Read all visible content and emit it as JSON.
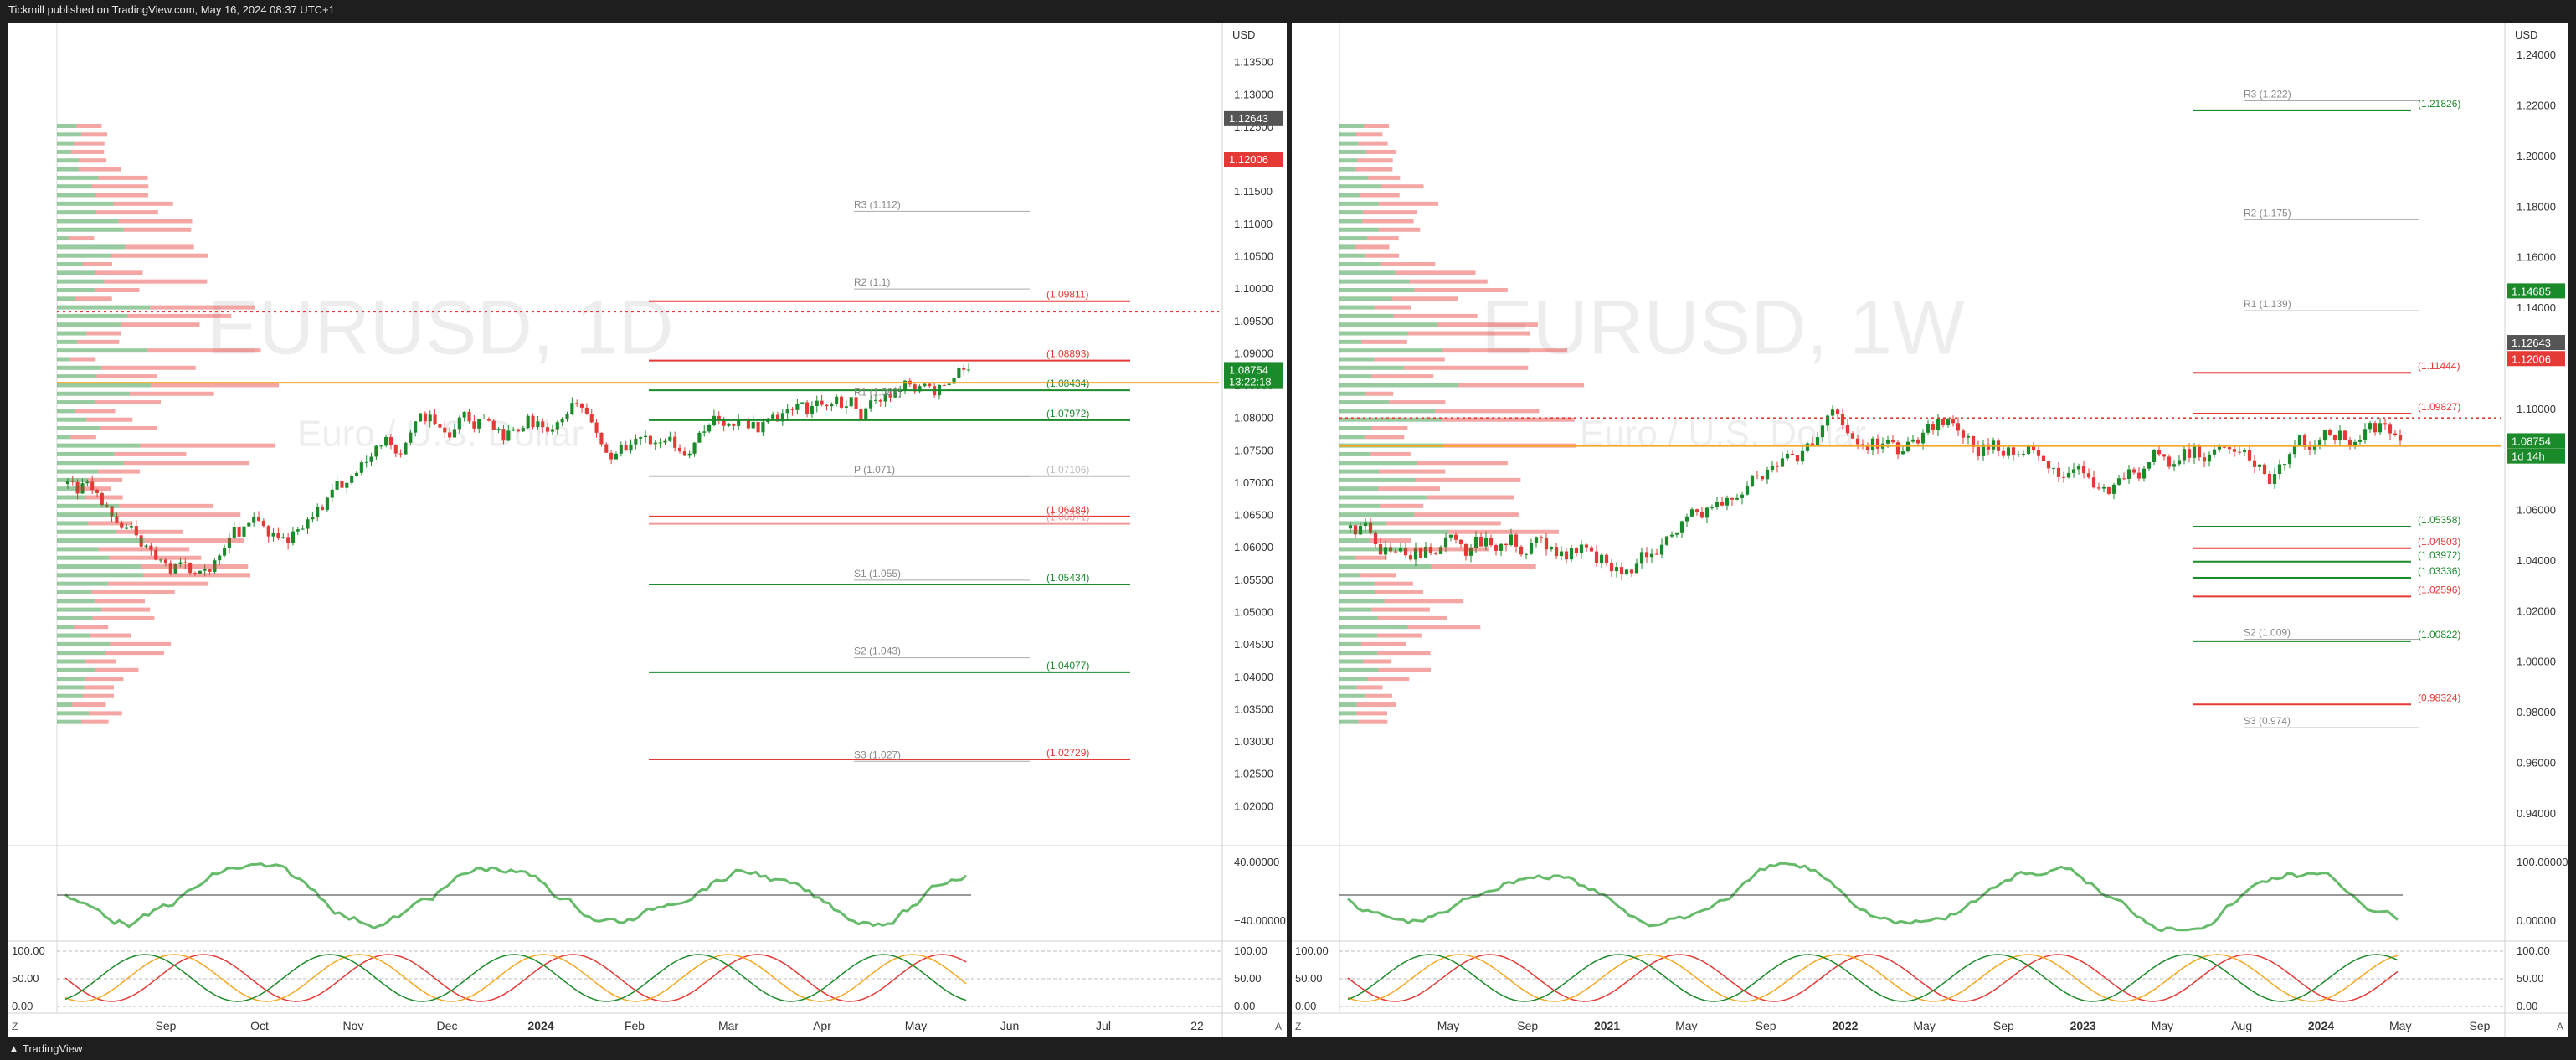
{
  "header": {
    "publish_line": "Tickmill published on TradingView.com, May 16, 2024 08:37 UTC+1"
  },
  "footer": {
    "brand": "TradingView"
  },
  "colors": {
    "up": "#1b8a2a",
    "down": "#e53935",
    "accent_orange": "#f5a623",
    "magenta": "#e040fb",
    "osc_green": "#66bb6a",
    "osc_red": "#ef5350"
  },
  "chart_data": [
    {
      "type": "candlestick",
      "title": "EURUSD, 1D",
      "subtitle": "Euro / U.S. Dollar",
      "currency": "USD",
      "ylim": [
        1.015,
        1.14
      ],
      "y_ticks": [
        "1.13500",
        "1.13000",
        "1.12500",
        "1.12000",
        "1.11500",
        "1.11000",
        "1.10500",
        "1.10000",
        "1.09500",
        "1.09000",
        "1.08500",
        "1.08000",
        "1.07500",
        "1.07000",
        "1.06500",
        "1.06000",
        "1.05500",
        "1.05000",
        "1.04500",
        "1.04000",
        "1.03500",
        "1.03000",
        "1.02500",
        "1.02000"
      ],
      "x_ticks": [
        "Sep",
        "Oct",
        "Nov",
        "Dec",
        "2024",
        "Feb",
        "Mar",
        "Apr",
        "May",
        "Jun",
        "Jul",
        "22"
      ],
      "x_tick_bold": [
        false,
        false,
        false,
        false,
        true,
        false,
        false,
        false,
        false,
        false,
        false,
        false
      ],
      "x_tick_count": 12,
      "price_labels": [
        {
          "text": "1.12643",
          "value": 1.12643,
          "bg": "#555555",
          "fg": "#ffffff"
        },
        {
          "text": "1.12006",
          "value": 1.12006,
          "bg": "#e53935",
          "fg": "#ffffff"
        },
        {
          "text": "1.08754",
          "value": 1.08754,
          "bg": "#1b8a2a",
          "fg": "#ffffff"
        },
        {
          "text": "13:22:18",
          "value": 1.0857,
          "bg": "#1b8a2a",
          "fg": "#ffffff"
        }
      ],
      "levels": [
        {
          "label": "(1.09811)",
          "value": 1.09811,
          "color": "#e53935"
        },
        {
          "label": "(1.08893)",
          "value": 1.08893,
          "color": "#e53935"
        },
        {
          "label": "(1.08434)",
          "value": 1.08434,
          "color": "#1b8a2a"
        },
        {
          "label": "(1.07972)",
          "value": 1.07972,
          "color": "#1b8a2a"
        },
        {
          "label": "(1.07106)",
          "value": 1.07106,
          "color": "#bbbbbb"
        },
        {
          "label": "(1.06484)",
          "value": 1.06484,
          "color": "#e53935"
        },
        {
          "label": "(1.06371)",
          "value": 1.06371,
          "color": "#ef9a9a"
        },
        {
          "label": "(1.05434)",
          "value": 1.05434,
          "color": "#1b8a2a"
        },
        {
          "label": "(1.04077)",
          "value": 1.04077,
          "color": "#1b8a2a"
        },
        {
          "label": "(1.02729)",
          "value": 1.02729,
          "color": "#e53935"
        }
      ],
      "pivots": [
        {
          "label": "R3 (1.112)",
          "value": 1.112
        },
        {
          "label": "R2 (1.1)",
          "value": 1.1
        },
        {
          "label": "R1 (1.083)",
          "value": 1.083
        },
        {
          "label": "P (1.071)",
          "value": 1.071
        },
        {
          "label": "S1 (1.055)",
          "value": 1.055
        },
        {
          "label": "S2 (1.043)",
          "value": 1.043
        },
        {
          "label": "S3 (1.027)",
          "value": 1.027
        }
      ],
      "osc1_ticks": [
        "40.00000",
        "−40.00000"
      ],
      "osc2_ticks": [
        "100.00",
        "50.00",
        "0.00"
      ]
    },
    {
      "type": "candlestick",
      "title": "EURUSD, 1W",
      "subtitle": "Euro / U.S. Dollar",
      "currency": "USD",
      "ylim": [
        0.93,
        1.25
      ],
      "y_ticks": [
        "1.24000",
        "1.22000",
        "1.20000",
        "1.18000",
        "1.16000",
        "1.14000",
        "1.12000",
        "1.10000",
        "1.08000",
        "1.06000",
        "1.04000",
        "1.02000",
        "1.00000",
        "0.98000",
        "0.96000",
        "0.94000"
      ],
      "x_ticks": [
        "May",
        "Sep",
        "2021",
        "May",
        "Sep",
        "2022",
        "May",
        "Sep",
        "2023",
        "May",
        "Aug",
        "2024",
        "May",
        "Sep"
      ],
      "x_tick_bold": [
        false,
        false,
        true,
        false,
        false,
        true,
        false,
        false,
        true,
        false,
        false,
        true,
        false,
        false
      ],
      "x_tick_count": 14,
      "price_labels": [
        {
          "text": "1.14685",
          "value": 1.14685,
          "bg": "#1b8a2a",
          "fg": "#ffffff"
        },
        {
          "text": "1.12643",
          "value": 1.12643,
          "bg": "#555555",
          "fg": "#ffffff"
        },
        {
          "text": "1.12006",
          "value": 1.12006,
          "bg": "#e53935",
          "fg": "#ffffff"
        },
        {
          "text": "1.08754",
          "value": 1.08754,
          "bg": "#1b8a2a",
          "fg": "#ffffff"
        },
        {
          "text": "1d 14h",
          "value": 1.0815,
          "bg": "#1b8a2a",
          "fg": "#ffffff"
        }
      ],
      "levels": [
        {
          "label": "(1.21826)",
          "value": 1.21826,
          "color": "#1b8a2a"
        },
        {
          "label": "(1.11444)",
          "value": 1.11444,
          "color": "#e53935"
        },
        {
          "label": "(1.09827)",
          "value": 1.09827,
          "color": "#e53935"
        },
        {
          "label": "(1.05358)",
          "value": 1.05358,
          "color": "#1b8a2a"
        },
        {
          "label": "(1.04503)",
          "value": 1.04503,
          "color": "#e53935"
        },
        {
          "label": "(1.03972)",
          "value": 1.03972,
          "color": "#1b8a2a"
        },
        {
          "label": "(1.03336)",
          "value": 1.03336,
          "color": "#1b8a2a"
        },
        {
          "label": "(1.02596)",
          "value": 1.02596,
          "color": "#e53935"
        },
        {
          "label": "(1.00822)",
          "value": 1.00822,
          "color": "#1b8a2a"
        },
        {
          "label": "(0.98324)",
          "value": 0.98324,
          "color": "#e53935"
        }
      ],
      "pivots": [
        {
          "label": "R3 (1.222)",
          "value": 1.222
        },
        {
          "label": "R2 (1.175)",
          "value": 1.175
        },
        {
          "label": "R1 (1.139)",
          "value": 1.139
        },
        {
          "label": "S2 (1.009)",
          "value": 1.009
        },
        {
          "label": "S3 (0.974)",
          "value": 0.974
        }
      ],
      "osc1_ticks": [
        "100.00000",
        "0.00000"
      ],
      "osc2_ticks": [
        "100.00",
        "50.00",
        "0.00"
      ]
    }
  ]
}
